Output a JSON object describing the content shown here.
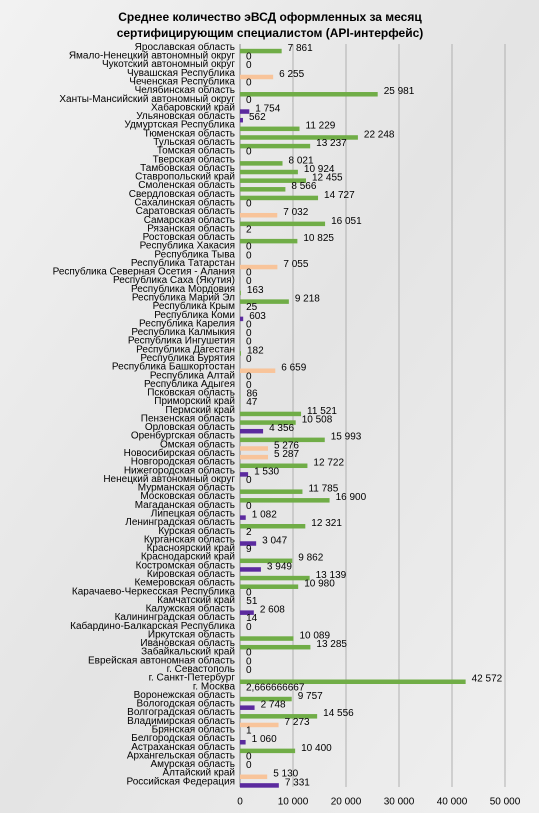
{
  "chart_data": {
    "type": "barh",
    "title_lines": [
      "Среднее количество эВСД оформленных за месяц",
      "сертифицирующим  специалистом (API-интерфейс)"
    ],
    "categories": [
      "Ярославская область",
      "Ямало-Ненецкий автономный округ",
      "Чукотский автономный округ",
      "Чувашская Республика",
      "Чеченская Республика",
      "Челябинская область",
      "Ханты-Мансийский автономный округ",
      "Хабаровский край",
      "Ульяновская область",
      "Удмуртская Республика",
      "Тюменская область",
      "Тульская область",
      "Томская область",
      "Тверская область",
      "Тамбовская область",
      "Ставропольский край",
      "Смоленская область",
      "Свердловская область",
      "Сахалинская область",
      "Саратовская область",
      "Самарская область",
      "Рязанская область",
      "Ростовская область",
      "Республика Хакасия",
      "Республика Тыва",
      "Республика Татарстан",
      "Республика Северная Осетия - Алания",
      "Республика Саха (Якутия)",
      "Республика Мордовия",
      "Республика Марий Эл",
      "Республика Крым",
      "Республика Коми",
      "Республика Карелия",
      "Республика Калмыкия",
      "Республика Ингушетия",
      "Республика Дагестан",
      "Республика Бурятия",
      "Республика Башкортостан",
      "Республика Алтай",
      "Республика Адыгея",
      "Псковская область",
      "Приморский край",
      "Пермский край",
      "Пензенская область",
      "Орловская область",
      "Оренбургская область",
      "Омская область",
      "Новосибирская область",
      "Новгородская область",
      "Нижегородская область",
      "Ненецкий автономный округ",
      "Мурманская область",
      "Московская область",
      "Магаданская область",
      "Липецкая область",
      "Ленинградская область",
      "Курская область",
      "Курганская область",
      "Красноярский край",
      "Краснодарский край",
      "Костромская область",
      "Кировская область",
      "Кемеровская область",
      "Карачаево-Черкесская Республика",
      "Камчатский край",
      "Калужская область",
      "Калининградская область",
      "Кабардино-Балкарская Республика",
      "Иркутская область",
      "Ивановская область",
      "Забайкальский край",
      "Еврейская автономная область",
      "г. Севастополь",
      "г. Санкт-Петербург",
      "г. Москва",
      "Воронежская область",
      "Вологодская область",
      "Волгоградская область",
      "Владимирская область",
      "Брянская область",
      "Белгородская область",
      "Астраханская область",
      "Архангельская область",
      "Амурская область",
      "Алтайский край",
      "Российская Федерация"
    ],
    "values": [
      7861,
      0,
      0,
      6255,
      0,
      25981,
      0,
      1754,
      562,
      11229,
      22248,
      13237,
      0,
      8021,
      10924,
      12455,
      8566,
      14727,
      0,
      7032,
      16051,
      2,
      10825,
      0,
      0,
      7055,
      0,
      0,
      163,
      9218,
      25,
      603,
      0,
      0,
      0,
      182,
      0,
      6659,
      0,
      0,
      86,
      47,
      11521,
      10508,
      4356,
      15993,
      5276,
      5287,
      12722,
      1530,
      0,
      11785,
      16900,
      0,
      1082,
      12321,
      2,
      3047,
      9,
      9862,
      3949,
      13139,
      10980,
      0,
      51,
      2608,
      14,
      0,
      10089,
      13285,
      0,
      0,
      0,
      42572,
      2.666666667,
      9757,
      2748,
      14556,
      7273,
      1,
      1060,
      10400,
      0,
      0,
      5130,
      7331
    ],
    "value_labels": [
      "7 861",
      "0",
      "0",
      "6 255",
      "0",
      "25 981",
      "0",
      "1 754",
      "562",
      "11 229",
      "22 248",
      "13 237",
      "0",
      "8 021",
      "10 924",
      "12 455",
      "8 566",
      "14 727",
      "0",
      "7 032",
      "16 051",
      "2",
      "10 825",
      "0",
      "0",
      "7 055",
      "0",
      "0",
      "163",
      "9 218",
      "25",
      "603",
      "0",
      "0",
      "0",
      "182",
      "0",
      "6 659",
      "0",
      "0",
      "86",
      "47",
      "11 521",
      "10 508",
      "4 356",
      "15 993",
      "5 276",
      "5 287",
      "12 722",
      "1 530",
      "0",
      "11 785",
      "16 900",
      "0",
      "1 082",
      "12 321",
      "2",
      "3 047",
      "9",
      "9 862",
      "3 949",
      "13 139",
      "10 980",
      "0",
      "51",
      "2 608",
      "14",
      "0",
      "10 089",
      "13 285",
      "0",
      "0",
      "0",
      "42 572",
      "2,666666667",
      "9 757",
      "2 748",
      "14 556",
      "7 273",
      "1",
      "1 060",
      "10 400",
      "0",
      "0",
      "5 130",
      "7 331"
    ],
    "colors": [
      "#70ad47",
      "#70ad47",
      "#70ad47",
      "#f8c49a",
      "#70ad47",
      "#70ad47",
      "#70ad47",
      "#5b2a9e",
      "#5b2a9e",
      "#70ad47",
      "#70ad47",
      "#70ad47",
      "#70ad47",
      "#70ad47",
      "#70ad47",
      "#70ad47",
      "#70ad47",
      "#70ad47",
      "#70ad47",
      "#f8c49a",
      "#70ad47",
      "#70ad47",
      "#70ad47",
      "#70ad47",
      "#70ad47",
      "#f8c49a",
      "#70ad47",
      "#70ad47",
      "#70ad47",
      "#70ad47",
      "#70ad47",
      "#5b2a9e",
      "#70ad47",
      "#70ad47",
      "#70ad47",
      "#70ad47",
      "#70ad47",
      "#f8c49a",
      "#70ad47",
      "#70ad47",
      "#70ad47",
      "#70ad47",
      "#70ad47",
      "#70ad47",
      "#5b2a9e",
      "#70ad47",
      "#f8c49a",
      "#f8c49a",
      "#70ad47",
      "#5b2a9e",
      "#70ad47",
      "#70ad47",
      "#70ad47",
      "#70ad47",
      "#5b2a9e",
      "#70ad47",
      "#70ad47",
      "#5b2a9e",
      "#70ad47",
      "#70ad47",
      "#5b2a9e",
      "#70ad47",
      "#70ad47",
      "#70ad47",
      "#70ad47",
      "#5b2a9e",
      "#70ad47",
      "#70ad47",
      "#70ad47",
      "#70ad47",
      "#70ad47",
      "#70ad47",
      "#70ad47",
      "#70ad47",
      "#70ad47",
      "#70ad47",
      "#5b2a9e",
      "#70ad47",
      "#f8c49a",
      "#f8c49a",
      "#5b2a9e",
      "#70ad47",
      "#70ad47",
      "#70ad47",
      "#f8c49a",
      "#5b2a9e"
    ],
    "xlim": [
      0,
      50000
    ],
    "xticks": [
      0,
      {
        "value": 10000,
        "label": "10 000"
      },
      {
        "value": 20000,
        "label": "20 000"
      },
      {
        "value": 30000,
        "label": "30 000"
      },
      {
        "value": 40000,
        "label": "40 000"
      },
      {
        "value": 50000,
        "label": "50 000"
      }
    ],
    "grid": true
  }
}
